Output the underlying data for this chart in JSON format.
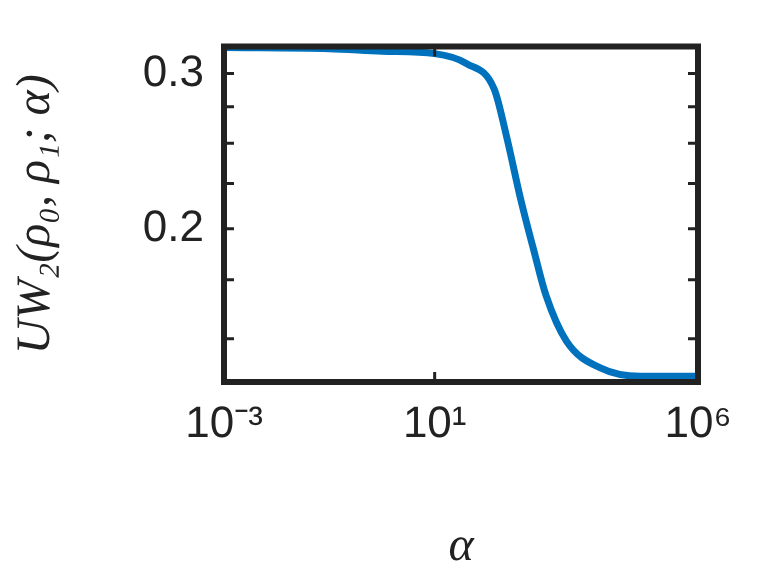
{
  "chart_data": {
    "type": "line",
    "xlabel": "α",
    "ylabel": "UW₂(ρ₀, ρ₁; α)",
    "log": "xy",
    "grid": false,
    "legend": false,
    "marker": "none",
    "line_style": "solid",
    "x": [
      0.001,
      0.1,
      1,
      10,
      40,
      135,
      230,
      430,
      780,
      1300,
      3200,
      14000,
      80000,
      1000000
    ],
    "series": [
      {
        "color": "#0072bd",
        "values": [
          0.321,
          0.32,
          0.318,
          0.316,
          0.308,
          0.288,
          0.255,
          0.216,
          0.188,
          0.168,
          0.149,
          0.139,
          0.136,
          0.136
        ]
      }
    ],
    "xlim": [
      0.001,
      1000000
    ],
    "xticks": [
      {
        "value": 0.001,
        "label": "10⁻³"
      },
      {
        "value": 10,
        "label": "10¹"
      },
      {
        "value": 1000000,
        "label": "10⁶"
      }
    ],
    "ylim": [
      0.134,
      0.322
    ],
    "yticks": [
      {
        "value": 0.15,
        "label": null
      },
      {
        "value": 0.175,
        "label": null
      },
      0.2,
      {
        "value": 0.225,
        "label": null
      },
      {
        "value": 0.25,
        "label": null
      },
      {
        "value": 0.275,
        "label": null
      },
      0.3
    ]
  }
}
